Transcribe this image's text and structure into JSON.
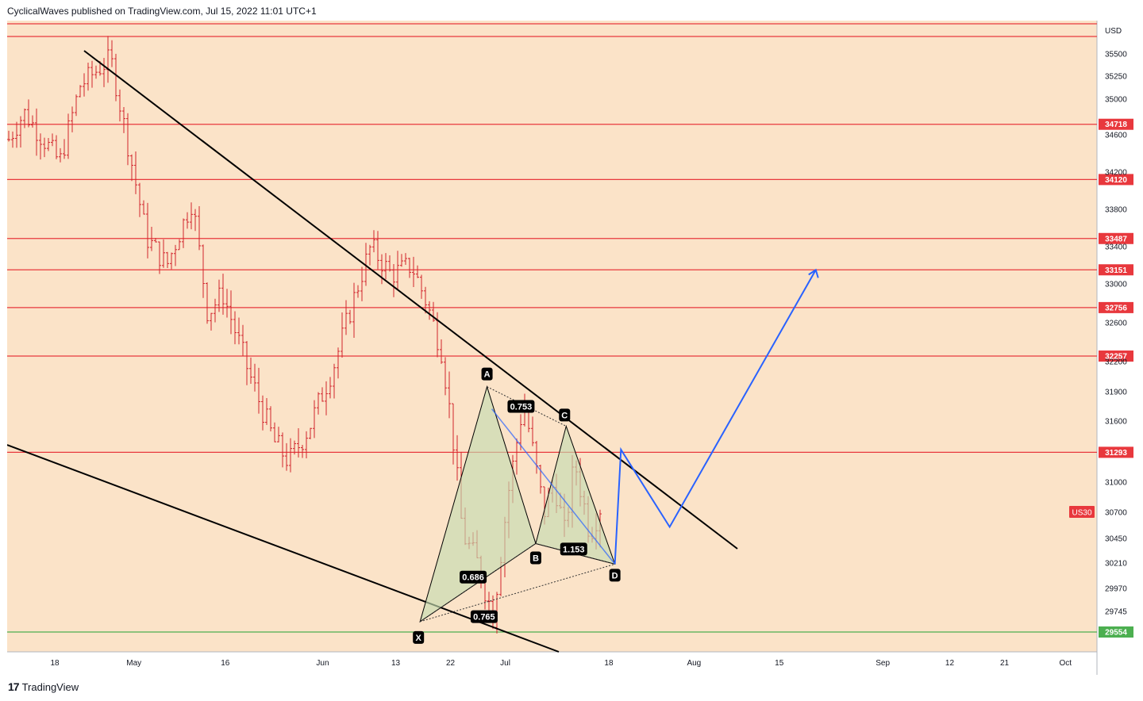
{
  "header": {
    "publisher_line": "CyclicalWaves published on TradingView.com, Jul 15, 2022 11:01 UTC+1"
  },
  "footer": {
    "logo_mark": "17",
    "logo_text": "TradingView"
  },
  "colors": {
    "background": "#fbe3c8",
    "level_line": "#e8383d",
    "support_line": "#4caf50",
    "trendline": "#000000",
    "projection": "#2962ff",
    "pattern_fill": "#c5dbb0"
  },
  "chart_data": {
    "type": "candlestick",
    "symbol_badge": "US30",
    "currency": "USD",
    "last_price": 30700,
    "y_axis": {
      "scale": "linear",
      "ticks": [
        35500,
        35250,
        35000,
        34600,
        34200,
        33800,
        33400,
        33000,
        32600,
        32200,
        31900,
        31600,
        31000,
        30700,
        30450,
        30210,
        29970,
        29745
      ]
    },
    "x_axis": {
      "ticks": [
        "18",
        "May",
        "16",
        "Jun",
        "13",
        "22",
        "Jul",
        "18",
        "Aug",
        "15",
        "Sep",
        "12",
        "21",
        "Oct"
      ]
    },
    "horizontal_levels": [
      {
        "value": 34718,
        "label": "34718",
        "color": "#e8383d"
      },
      {
        "value": 34120,
        "label": "34120",
        "color": "#e8383d"
      },
      {
        "value": 33487,
        "label": "33487",
        "color": "#e8383d"
      },
      {
        "value": 33151,
        "label": "33151",
        "color": "#e8383d"
      },
      {
        "value": 32756,
        "label": "32756",
        "color": "#e8383d"
      },
      {
        "value": 32257,
        "label": "32257",
        "color": "#e8383d"
      },
      {
        "value": 31293,
        "label": "31293",
        "color": "#e8383d"
      },
      {
        "value": 29554,
        "label": "29554",
        "color": "#4caf50"
      }
    ],
    "harmonic_pattern": {
      "points": [
        {
          "label": "X",
          "date": "2022-06-17",
          "price": 29650
        },
        {
          "label": "A",
          "date": "2022-06-28",
          "price": 31950
        },
        {
          "label": "B",
          "date": "2022-07-06",
          "price": 30400
        },
        {
          "label": "C",
          "date": "2022-07-11",
          "price": 31550
        },
        {
          "label": "D",
          "date": "2022-07-19",
          "price": 30200
        }
      ],
      "ratios": [
        "0.753",
        "0.686",
        "1.153",
        "0.765"
      ]
    },
    "projection_path": [
      {
        "date": "2022-07-19",
        "price": 30200
      },
      {
        "date": "2022-07-20",
        "price": 31320
      },
      {
        "date": "2022-07-28",
        "price": 30560
      },
      {
        "date": "2022-08-21",
        "price": 33150
      }
    ]
  }
}
